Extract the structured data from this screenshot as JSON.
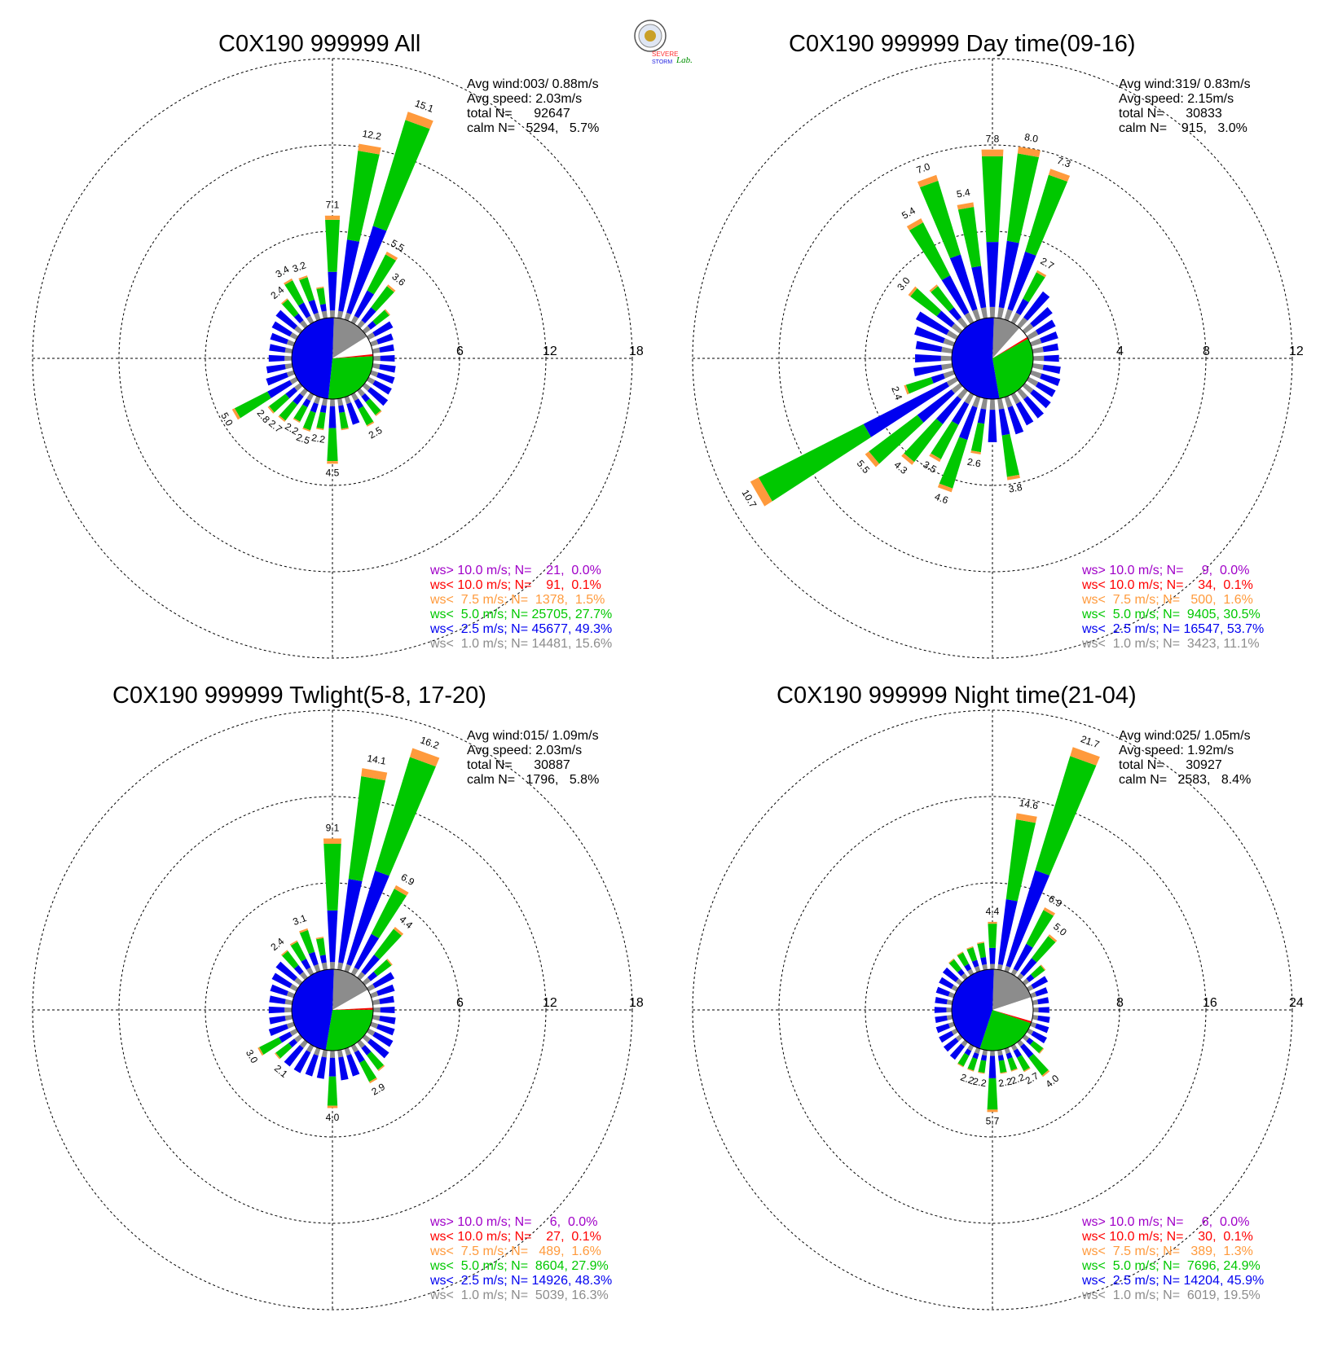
{
  "colors": {
    "over10": "#a000c8",
    "lt10": "#ff0000",
    "lt7_5": "#ff9a3c",
    "lt5": "#00c800",
    "lt2_5": "#0000f0",
    "lt1": "#8c8c8c",
    "calm": "#ffffff"
  },
  "logo_text": [
    "SEVERE",
    "STORM",
    "Lab."
  ],
  "chart_data": [
    {
      "type": "wind-rose",
      "title": "C0X190 999999 All",
      "ring_labels": [
        "6",
        "12",
        "18"
      ],
      "rmax": 18,
      "stats": [
        "Avg wind:003/ 0.88m/s",
        "Avg speed: 2.03m/s",
        "total N=      92647",
        "calm N=   5294,   5.7%"
      ],
      "legend": [
        "ws> 10.0 m/s; N=    21,  0.0%",
        "ws< 10.0 m/s; N=    91,  0.1%",
        "ws<  7.5 m/s; N=  1378,  1.5%",
        "ws<  5.0 m/s; N= 25705, 27.7%",
        "ws<  2.5 m/s; N= 45677, 49.3%",
        "ws<  1.0 m/s; N= 14481, 15.6%"
      ],
      "pie": [
        15.6,
        27.7,
        49.3
      ],
      "bars": [
        {
          "deg": 0,
          "v": 7.1,
          "label": "7.1"
        },
        {
          "deg": 10,
          "v": 12.2,
          "label": "12.2"
        },
        {
          "deg": 20,
          "v": 15.1,
          "label": "15.1"
        },
        {
          "deg": 30,
          "v": 5.5,
          "label": "5.5"
        },
        {
          "deg": 40,
          "v": 3.6,
          "label": "3.6"
        },
        {
          "deg": 50,
          "v": 2.2
        },
        {
          "deg": 60,
          "v": 1.9
        },
        {
          "deg": 70,
          "v": 1.6
        },
        {
          "deg": 80,
          "v": 1.5
        },
        {
          "deg": 90,
          "v": 1.5
        },
        {
          "deg": 100,
          "v": 1.6
        },
        {
          "deg": 110,
          "v": 1.7
        },
        {
          "deg": 120,
          "v": 1.8
        },
        {
          "deg": 130,
          "v": 2.0
        },
        {
          "deg": 140,
          "v": 2.2
        },
        {
          "deg": 150,
          "v": 2.5,
          "label": "2.5"
        },
        {
          "deg": 160,
          "v": 2.0
        },
        {
          "deg": 170,
          "v": 2.2
        },
        {
          "deg": 180,
          "v": 4.5,
          "label": "4.5"
        },
        {
          "deg": 190,
          "v": 2.2,
          "label": "2.2"
        },
        {
          "deg": 200,
          "v": 2.5,
          "label": "2.5"
        },
        {
          "deg": 210,
          "v": 2.2,
          "label": "2.2"
        },
        {
          "deg": 220,
          "v": 2.7,
          "label": "2.7"
        },
        {
          "deg": 230,
          "v": 2.8,
          "label": "2.8"
        },
        {
          "deg": 240,
          "v": 5.0,
          "label": "5.0"
        },
        {
          "deg": 250,
          "v": 2.0
        },
        {
          "deg": 260,
          "v": 1.8
        },
        {
          "deg": 270,
          "v": 1.6
        },
        {
          "deg": 280,
          "v": 1.6
        },
        {
          "deg": 290,
          "v": 1.7
        },
        {
          "deg": 300,
          "v": 1.9
        },
        {
          "deg": 310,
          "v": 2.1
        },
        {
          "deg": 320,
          "v": 2.4,
          "label": "2.4"
        },
        {
          "deg": 330,
          "v": 3.4,
          "label": "3.4"
        },
        {
          "deg": 340,
          "v": 3.2,
          "label": "3.2"
        },
        {
          "deg": 350,
          "v": 2.2
        }
      ]
    },
    {
      "type": "wind-rose",
      "title": "C0X190 999999 Day time(09-16)",
      "ring_labels": [
        "4",
        "8",
        "12"
      ],
      "rmax": 12,
      "stats": [
        "Avg wind:319/ 0.83m/s",
        "Avg speed: 2.15m/s",
        "total N=      30833",
        "calm N=    915,   3.0%"
      ],
      "legend": [
        "ws> 10.0 m/s; N=     9,  0.0%",
        "ws< 10.0 m/s; N=    34,  0.1%",
        "ws<  7.5 m/s; N=   500,  1.6%",
        "ws<  5.0 m/s; N=  9405, 30.5%",
        "ws<  2.5 m/s; N= 16547, 53.7%",
        "ws<  1.0 m/s; N=  3423, 11.1%"
      ],
      "pie": [
        11.1,
        30.5,
        53.7
      ],
      "bars": [
        {
          "deg": 0,
          "v": 7.8,
          "label": "7.8"
        },
        {
          "deg": 10,
          "v": 8.0,
          "label": "8.0"
        },
        {
          "deg": 20,
          "v": 7.3,
          "label": "7.3"
        },
        {
          "deg": 30,
          "v": 2.7,
          "label": "2.7"
        },
        {
          "deg": 40,
          "v": 2.0
        },
        {
          "deg": 50,
          "v": 1.6
        },
        {
          "deg": 60,
          "v": 1.4
        },
        {
          "deg": 70,
          "v": 1.3
        },
        {
          "deg": 80,
          "v": 1.2
        },
        {
          "deg": 90,
          "v": 1.2
        },
        {
          "deg": 100,
          "v": 1.3
        },
        {
          "deg": 110,
          "v": 1.4
        },
        {
          "deg": 120,
          "v": 1.4
        },
        {
          "deg": 130,
          "v": 1.5
        },
        {
          "deg": 140,
          "v": 1.6
        },
        {
          "deg": 150,
          "v": 1.6
        },
        {
          "deg": 160,
          "v": 1.8
        },
        {
          "deg": 170,
          "v": 3.8,
          "label": "3.8"
        },
        {
          "deg": 180,
          "v": 2.0
        },
        {
          "deg": 190,
          "v": 2.6,
          "label": "2.6"
        },
        {
          "deg": 200,
          "v": 4.6,
          "label": "4.6"
        },
        {
          "deg": 210,
          "v": 3.5,
          "label": "3.5"
        },
        {
          "deg": 220,
          "v": 4.3,
          "label": "4.3"
        },
        {
          "deg": 230,
          "v": 5.5,
          "label": "5.5"
        },
        {
          "deg": 240,
          "v": 10.7,
          "label": "10.7"
        },
        {
          "deg": 250,
          "v": 2.4,
          "label": "2.4"
        },
        {
          "deg": 260,
          "v": 1.8
        },
        {
          "deg": 270,
          "v": 1.7
        },
        {
          "deg": 280,
          "v": 1.7
        },
        {
          "deg": 290,
          "v": 1.9
        },
        {
          "deg": 300,
          "v": 2.1
        },
        {
          "deg": 310,
          "v": 3.0,
          "label": "3.0"
        },
        {
          "deg": 320,
          "v": 2.4
        },
        {
          "deg": 330,
          "v": 5.4,
          "label": "5.4"
        },
        {
          "deg": 340,
          "v": 7.0,
          "label": "7.0"
        },
        {
          "deg": 350,
          "v": 5.4,
          "label": "5.4"
        }
      ]
    },
    {
      "type": "wind-rose",
      "title": "C0X190 999999 Twlight(5-8, 17-20)",
      "ring_labels": [
        "6",
        "12",
        "18"
      ],
      "rmax": 18,
      "stats": [
        "Avg wind:015/ 1.09m/s",
        "Avg speed: 2.03m/s",
        "total N=      30887",
        "calm N=   1796,   5.8%"
      ],
      "legend": [
        "ws> 10.0 m/s; N=     6,  0.0%",
        "ws< 10.0 m/s; N=    27,  0.1%",
        "ws<  7.5 m/s; N=   489,  1.6%",
        "ws<  5.0 m/s; N=  8604, 27.9%",
        "ws<  2.5 m/s; N= 14926, 48.3%",
        "ws<  1.0 m/s; N=  5039, 16.3%"
      ],
      "pie": [
        16.3,
        27.9,
        48.3
      ],
      "bars": [
        {
          "deg": 0,
          "v": 9.1,
          "label": "9.1"
        },
        {
          "deg": 10,
          "v": 14.1,
          "label": "14.1"
        },
        {
          "deg": 20,
          "v": 16.2,
          "label": "16.2"
        },
        {
          "deg": 30,
          "v": 6.9,
          "label": "6.9"
        },
        {
          "deg": 40,
          "v": 4.4,
          "label": "4.4"
        },
        {
          "deg": 50,
          "v": 2.4
        },
        {
          "deg": 60,
          "v": 2.0
        },
        {
          "deg": 70,
          "v": 1.7
        },
        {
          "deg": 80,
          "v": 1.5
        },
        {
          "deg": 90,
          "v": 1.5
        },
        {
          "deg": 100,
          "v": 1.6
        },
        {
          "deg": 110,
          "v": 1.7
        },
        {
          "deg": 120,
          "v": 1.9
        },
        {
          "deg": 130,
          "v": 2.1
        },
        {
          "deg": 140,
          "v": 2.5
        },
        {
          "deg": 150,
          "v": 2.9,
          "label": "2.9"
        },
        {
          "deg": 160,
          "v": 2.0
        },
        {
          "deg": 170,
          "v": 2.1
        },
        {
          "deg": 180,
          "v": 4.0,
          "label": "4.0"
        },
        {
          "deg": 190,
          "v": 2.0
        },
        {
          "deg": 200,
          "v": 2.0
        },
        {
          "deg": 210,
          "v": 2.1
        },
        {
          "deg": 220,
          "v": 2.1,
          "label": "2.1"
        },
        {
          "deg": 230,
          "v": 2.2
        },
        {
          "deg": 240,
          "v": 3.0,
          "label": "3.0"
        },
        {
          "deg": 250,
          "v": 1.8
        },
        {
          "deg": 260,
          "v": 1.6
        },
        {
          "deg": 270,
          "v": 1.6
        },
        {
          "deg": 280,
          "v": 1.6
        },
        {
          "deg": 290,
          "v": 1.7
        },
        {
          "deg": 300,
          "v": 1.9
        },
        {
          "deg": 310,
          "v": 2.1
        },
        {
          "deg": 320,
          "v": 2.4,
          "label": "2.4"
        },
        {
          "deg": 330,
          "v": 2.6
        },
        {
          "deg": 340,
          "v": 3.1,
          "label": "3.1"
        },
        {
          "deg": 350,
          "v": 2.3
        }
      ]
    },
    {
      "type": "wind-rose",
      "title": "C0X190 999999 Night time(21-04)",
      "ring_labels": [
        "8",
        "16",
        "24"
      ],
      "rmax": 24,
      "stats": [
        "Avg wind:025/ 1.05m/s",
        "Avg speed: 1.92m/s",
        "total N=      30927",
        "calm N=   2583,   8.4%"
      ],
      "legend": [
        "ws> 10.0 m/s; N=     6,  0.0%",
        "ws< 10.0 m/s; N=    30,  0.1%",
        "ws<  7.5 m/s; N=   389,  1.3%",
        "ws<  5.0 m/s; N=  7696, 24.9%",
        "ws<  2.5 m/s; N= 14204, 45.9%",
        "ws<  1.0 m/s; N=  6019, 19.5%"
      ],
      "pie": [
        19.5,
        24.9,
        45.9
      ],
      "bars": [
        {
          "deg": 0,
          "v": 4.4,
          "label": "4.4"
        },
        {
          "deg": 10,
          "v": 14.6,
          "label": "14.6"
        },
        {
          "deg": 20,
          "v": 21.7,
          "label": "21.7"
        },
        {
          "deg": 30,
          "v": 6.9,
          "label": "6.9"
        },
        {
          "deg": 40,
          "v": 5.0,
          "label": "5.0"
        },
        {
          "deg": 50,
          "v": 2.4
        },
        {
          "deg": 60,
          "v": 2.0
        },
        {
          "deg": 70,
          "v": 1.6
        },
        {
          "deg": 80,
          "v": 1.5
        },
        {
          "deg": 90,
          "v": 1.5
        },
        {
          "deg": 100,
          "v": 1.6
        },
        {
          "deg": 110,
          "v": 1.7
        },
        {
          "deg": 120,
          "v": 1.9
        },
        {
          "deg": 130,
          "v": 2.2
        },
        {
          "deg": 140,
          "v": 4.0,
          "label": "4.0"
        },
        {
          "deg": 150,
          "v": 2.7,
          "label": "2.7"
        },
        {
          "deg": 160,
          "v": 2.2,
          "label": "2.2"
        },
        {
          "deg": 170,
          "v": 2.2,
          "label": "2.2"
        },
        {
          "deg": 180,
          "v": 5.7,
          "label": "5.7"
        },
        {
          "deg": 190,
          "v": 2.2,
          "label": "2.2"
        },
        {
          "deg": 200,
          "v": 2.2,
          "label": "2.2"
        },
        {
          "deg": 210,
          "v": 2.2
        },
        {
          "deg": 220,
          "v": 2.0
        },
        {
          "deg": 230,
          "v": 1.9
        },
        {
          "deg": 240,
          "v": 1.8
        },
        {
          "deg": 250,
          "v": 1.7
        },
        {
          "deg": 260,
          "v": 1.6
        },
        {
          "deg": 270,
          "v": 1.6
        },
        {
          "deg": 280,
          "v": 1.6
        },
        {
          "deg": 290,
          "v": 1.7
        },
        {
          "deg": 300,
          "v": 1.8
        },
        {
          "deg": 310,
          "v": 2.0
        },
        {
          "deg": 320,
          "v": 2.2
        },
        {
          "deg": 330,
          "v": 2.3
        },
        {
          "deg": 340,
          "v": 2.4
        },
        {
          "deg": 350,
          "v": 2.6
        }
      ]
    }
  ]
}
